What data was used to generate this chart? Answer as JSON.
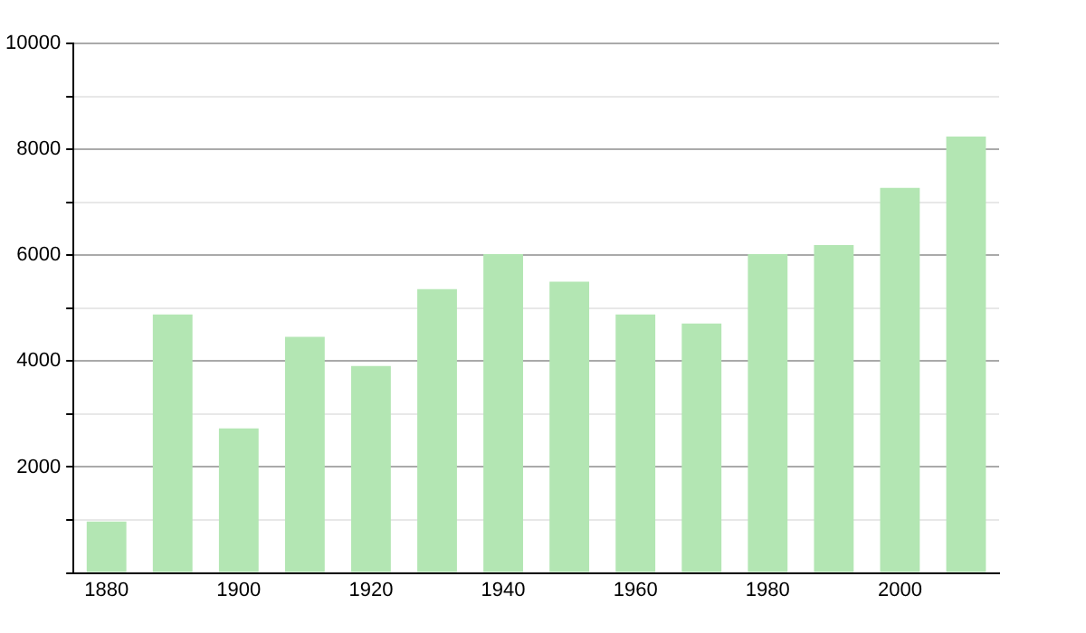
{
  "chart_data": {
    "type": "bar",
    "categories": [
      "1880",
      null,
      "1900",
      null,
      "1920",
      null,
      "1940",
      null,
      "1960",
      null,
      "1980",
      null,
      "2000",
      null
    ],
    "values": [
      970,
      4880,
      2730,
      4460,
      3910,
      5360,
      6020,
      5500,
      4880,
      4710,
      6020,
      6190,
      7270,
      8240
    ],
    "color": "#b3e6b3",
    "ylim": [
      0,
      10000
    ],
    "yticks": [
      {
        "value": 0,
        "label": null
      },
      {
        "value": 1000,
        "label": null
      },
      2000,
      {
        "value": 3000,
        "label": null
      },
      4000,
      {
        "value": 5000,
        "label": null
      },
      6000,
      {
        "value": 7000,
        "label": null
      },
      8000,
      {
        "value": 9000,
        "label": null
      },
      10000
    ],
    "grid": "y"
  }
}
